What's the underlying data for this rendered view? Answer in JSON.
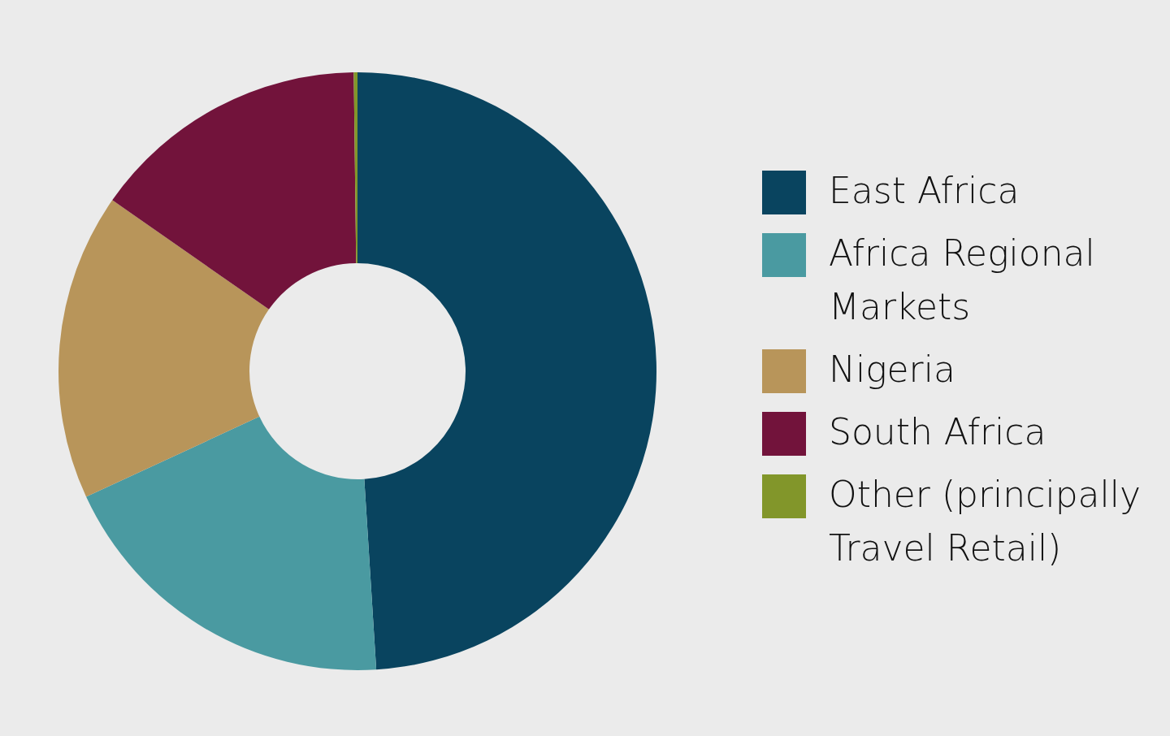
{
  "chart_data": {
    "type": "donut",
    "categories": [
      "East Africa",
      "Africa Regional Markets",
      "Nigeria",
      "South Africa",
      "Other (principally Travel Retail)"
    ],
    "values": [
      49.0,
      19.1,
      16.6,
      15.1,
      0.2
    ],
    "colors": [
      "#09445f",
      "#4a9aa1",
      "#b8955a",
      "#72133b",
      "#82962a"
    ],
    "legend": "right"
  }
}
